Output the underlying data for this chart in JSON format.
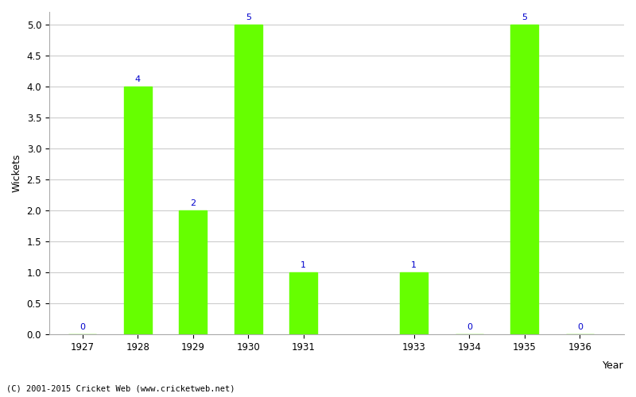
{
  "years": [
    1927,
    1928,
    1929,
    1930,
    1931,
    1933,
    1934,
    1935,
    1936
  ],
  "wickets": [
    0,
    4,
    2,
    5,
    1,
    1,
    0,
    5,
    0
  ],
  "bar_color": "#66ff00",
  "label_color": "#0000cc",
  "xlabel": "Year",
  "ylabel": "Wickets",
  "ylim": [
    0,
    5.2
  ],
  "yticks": [
    0.0,
    0.5,
    1.0,
    1.5,
    2.0,
    2.5,
    3.0,
    3.5,
    4.0,
    4.5,
    5.0
  ],
  "background_color": "#ffffff",
  "grid_color": "#cccccc",
  "footer": "(C) 2001-2015 Cricket Web (www.cricketweb.net)",
  "label_fontsize": 8,
  "axis_label_fontsize": 9,
  "tick_fontsize": 8.5,
  "bar_width": 0.5
}
